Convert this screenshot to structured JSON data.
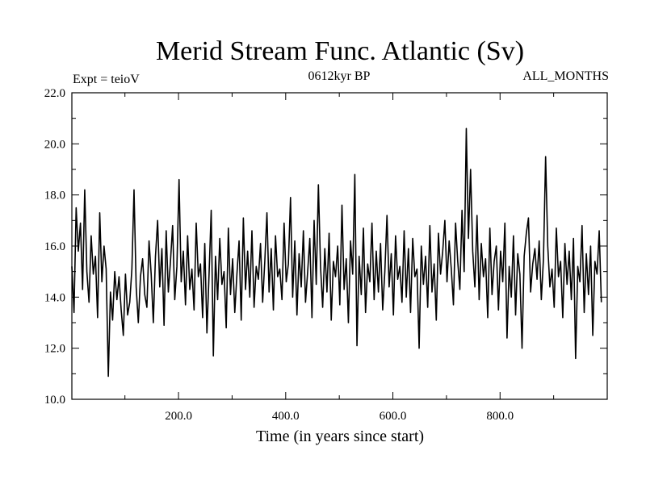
{
  "chart_data": {
    "type": "line",
    "title": "Merid Stream Func. Atlantic (Sv)",
    "subtitle_left": "Expt = teioV",
    "subtitle_center": "0612kyr BP",
    "subtitle_right": "ALL_MONTHS",
    "xlabel": "Time (in years since start)",
    "ylabel": "",
    "xlim": [
      1,
      1000
    ],
    "ylim": [
      10,
      22
    ],
    "x_ticks": [
      200,
      400,
      600,
      800
    ],
    "x_tick_labels": [
      "200.0",
      "400.0",
      "600.0",
      "800.0"
    ],
    "y_ticks": [
      10,
      12,
      14,
      16,
      18,
      20,
      22
    ],
    "y_tick_labels": [
      "10.0",
      "12.0",
      "14.0",
      "16.0",
      "18.0",
      "20.0",
      "22.0"
    ],
    "grid": false,
    "series": [
      {
        "color": "#000000",
        "x_start": 1,
        "x_step": 4,
        "values": [
          15.2,
          13.4,
          17.5,
          15.8,
          16.9,
          14.3,
          18.2,
          15.0,
          13.8,
          16.4,
          14.9,
          15.6,
          13.2,
          17.3,
          14.6,
          16.0,
          15.1,
          10.9,
          14.2,
          13.1,
          15.0,
          13.9,
          14.8,
          13.5,
          12.5,
          14.9,
          13.3,
          13.8,
          15.1,
          18.2,
          14.4,
          13.0,
          14.8,
          15.5,
          14.1,
          13.6,
          16.2,
          14.9,
          13.0,
          15.6,
          17.0,
          14.4,
          15.9,
          12.9,
          16.6,
          14.2,
          15.4,
          16.8,
          13.9,
          15.2,
          18.6,
          14.6,
          15.8,
          13.7,
          16.4,
          14.3,
          15.1,
          13.5,
          16.9,
          14.8,
          15.3,
          13.2,
          16.1,
          12.6,
          14.9,
          17.4,
          11.7,
          15.6,
          13.9,
          16.3,
          14.5,
          15.0,
          12.8,
          16.7,
          14.1,
          15.5,
          13.4,
          14.9,
          16.2,
          13.1,
          17.1,
          14.3,
          15.8,
          14.0,
          16.6,
          13.6,
          15.2,
          14.7,
          16.1,
          13.8,
          15.4,
          17.3,
          14.2,
          15.9,
          13.5,
          16.4,
          14.8,
          15.1,
          13.9,
          16.9,
          14.6,
          15.3,
          17.9,
          14.0,
          16.2,
          13.3,
          15.7,
          14.4,
          16.6,
          13.8,
          15.0,
          16.3,
          13.2,
          17.0,
          14.5,
          18.4,
          15.2,
          13.6,
          15.9,
          14.2,
          16.5,
          13.1,
          15.4,
          14.8,
          16.0,
          13.7,
          17.6,
          14.3,
          15.5,
          13.0,
          16.2,
          14.9,
          18.8,
          12.1,
          15.6,
          14.1,
          16.7,
          13.4,
          15.3,
          14.6,
          16.9,
          13.9,
          15.8,
          14.2,
          16.1,
          13.5,
          15.0,
          17.2,
          14.4,
          15.7,
          13.3,
          16.4,
          14.7,
          15.2,
          13.8,
          16.6,
          14.0,
          15.9,
          13.4,
          16.3,
          14.8,
          15.1,
          12.0,
          16.0,
          14.5,
          15.6,
          13.6,
          16.8,
          14.2,
          15.3,
          13.1,
          16.5,
          14.9,
          15.8,
          17.0,
          14.6,
          16.2,
          15.1,
          13.7,
          16.9,
          15.4,
          14.3,
          17.4,
          15.0,
          20.6,
          16.3,
          19.0,
          15.8,
          14.4,
          17.2,
          13.9,
          16.1,
          14.8,
          15.5,
          13.2,
          16.7,
          14.1,
          15.4,
          16.0,
          13.5,
          15.8,
          14.6,
          16.9,
          12.4,
          15.2,
          14.0,
          16.4,
          13.3,
          15.7,
          14.9,
          12.0,
          15.6,
          16.5,
          17.1,
          14.2,
          15.3,
          15.9,
          14.7,
          16.2,
          13.9,
          15.5,
          19.5,
          16.0,
          14.4,
          15.1,
          13.6,
          16.7,
          14.8,
          15.4,
          13.2,
          16.1,
          14.5,
          15.8,
          13.9,
          16.3,
          11.6,
          15.2,
          14.6,
          16.8,
          13.4,
          15.7,
          14.1,
          16.0,
          12.5,
          15.4,
          14.9,
          16.6,
          13.8
        ]
      }
    ]
  }
}
